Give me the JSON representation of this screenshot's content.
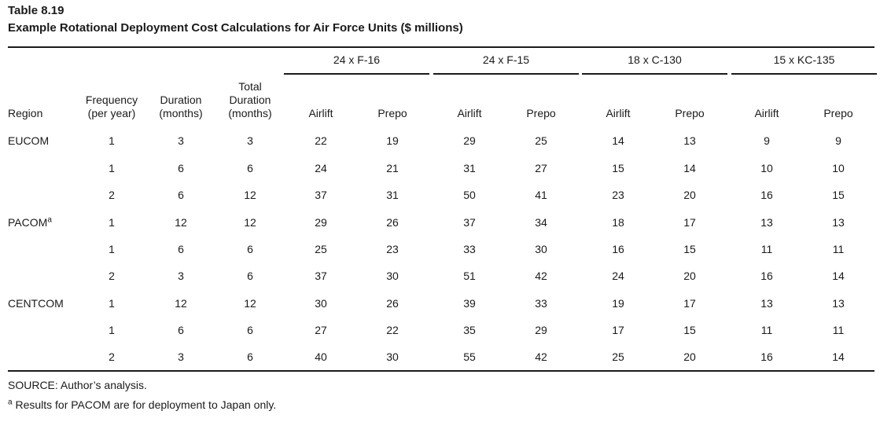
{
  "table": {
    "number": "Table 8.19",
    "title": "Example Rotational Deployment Cost Calculations for Air Force Units ($ millions)",
    "groups": [
      "24 x F-16",
      "24 x F-15",
      "18 x C-130",
      "15 x KC-135"
    ],
    "col_headers": {
      "region": "Region",
      "frequency": [
        "Frequency",
        "(per year)"
      ],
      "duration": [
        "Duration",
        "(months)"
      ],
      "total_duration": [
        "Total",
        "Duration",
        "(months)"
      ],
      "airlift": "Airlift",
      "prepo": "Prepo"
    },
    "rows": [
      {
        "region": "EUCOM",
        "region_sup": "",
        "freq": "1",
        "dur": "3",
        "total": "3",
        "vals": [
          "22",
          "19",
          "29",
          "25",
          "14",
          "13",
          "9",
          "9"
        ]
      },
      {
        "region": "",
        "region_sup": "",
        "freq": "1",
        "dur": "6",
        "total": "6",
        "vals": [
          "24",
          "21",
          "31",
          "27",
          "15",
          "14",
          "10",
          "10"
        ]
      },
      {
        "region": "",
        "region_sup": "",
        "freq": "2",
        "dur": "6",
        "total": "12",
        "vals": [
          "37",
          "31",
          "50",
          "41",
          "23",
          "20",
          "16",
          "15"
        ]
      },
      {
        "region": "PACOM",
        "region_sup": "a",
        "freq": "1",
        "dur": "12",
        "total": "12",
        "vals": [
          "29",
          "26",
          "37",
          "34",
          "18",
          "17",
          "13",
          "13"
        ]
      },
      {
        "region": "",
        "region_sup": "",
        "freq": "1",
        "dur": "6",
        "total": "6",
        "vals": [
          "25",
          "23",
          "33",
          "30",
          "16",
          "15",
          "11",
          "11"
        ]
      },
      {
        "region": "",
        "region_sup": "",
        "freq": "2",
        "dur": "3",
        "total": "6",
        "vals": [
          "37",
          "30",
          "51",
          "42",
          "24",
          "20",
          "16",
          "14"
        ]
      },
      {
        "region": "CENTCOM",
        "region_sup": "",
        "freq": "1",
        "dur": "12",
        "total": "12",
        "vals": [
          "30",
          "26",
          "39",
          "33",
          "19",
          "17",
          "13",
          "13"
        ]
      },
      {
        "region": "",
        "region_sup": "",
        "freq": "1",
        "dur": "6",
        "total": "6",
        "vals": [
          "27",
          "22",
          "35",
          "29",
          "17",
          "15",
          "11",
          "11"
        ]
      },
      {
        "region": "",
        "region_sup": "",
        "freq": "2",
        "dur": "3",
        "total": "6",
        "vals": [
          "40",
          "30",
          "55",
          "42",
          "25",
          "20",
          "16",
          "14"
        ]
      }
    ],
    "source": "SOURCE: Author’s analysis.",
    "footnote_mark": "a",
    "footnote": " Results for PACOM are for deployment to Japan only."
  }
}
